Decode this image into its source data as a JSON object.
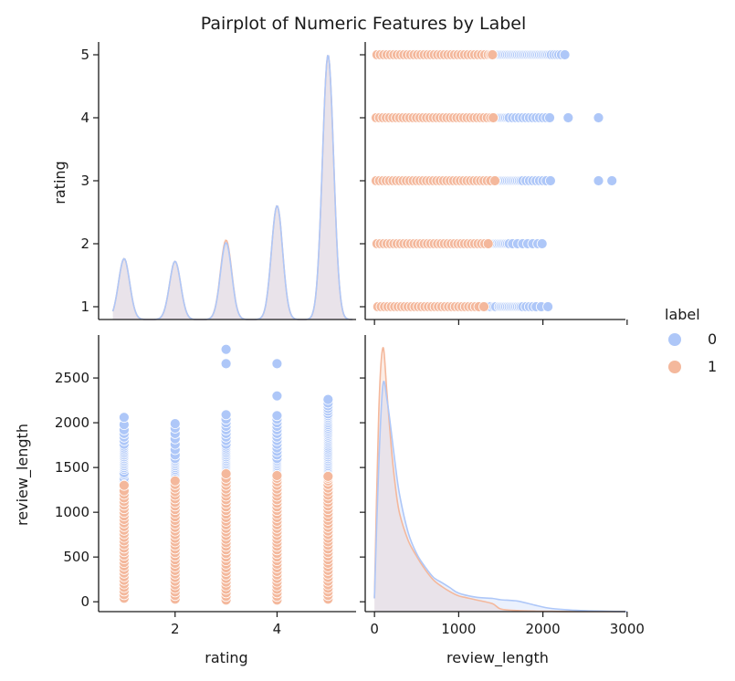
{
  "chart_data": {
    "type": "scatter",
    "title": "Pairplot of Numeric Features by Label",
    "variables": [
      "rating",
      "review_length"
    ],
    "hue": {
      "title": "label",
      "levels": [
        "0",
        "1"
      ],
      "colors": [
        "#aec7f8",
        "#f4b89c"
      ]
    },
    "axes": {
      "rating": {
        "label": "rating",
        "range": [
          0.5,
          5.55
        ],
        "diag_ticks": [
          2,
          4
        ],
        "row_ticks": [
          1,
          2,
          3,
          4,
          5
        ]
      },
      "review_length": {
        "label": "review_length",
        "range": [
          -110,
          2980
        ],
        "col_ticks": [
          0,
          1000,
          2000,
          3000
        ],
        "row_ticks": [
          0,
          500,
          1000,
          1500,
          2000,
          2500
        ]
      }
    },
    "rating_density": {
      "x": [
        1,
        2,
        3,
        4,
        5
      ],
      "peak_heights": [
        0.23,
        0.22,
        0.29,
        0.43,
        1.0
      ],
      "peak_heights_label1": [
        0.23,
        0.22,
        0.3,
        0.43,
        1.0
      ]
    },
    "review_length_density": {
      "x": [
        0,
        50,
        100,
        150,
        200,
        250,
        300,
        400,
        500,
        600,
        700,
        800,
        900,
        1000,
        1200,
        1400,
        1500,
        1700,
        1900,
        2100,
        2400,
        2700,
        3000
      ],
      "label0": [
        0.05,
        0.55,
        0.86,
        0.8,
        0.68,
        0.55,
        0.44,
        0.3,
        0.22,
        0.17,
        0.13,
        0.11,
        0.09,
        0.07,
        0.055,
        0.05,
        0.045,
        0.04,
        0.025,
        0.012,
        0.005,
        0.002,
        0.0
      ],
      "label1": [
        0.05,
        0.75,
        1.0,
        0.82,
        0.62,
        0.47,
        0.37,
        0.27,
        0.21,
        0.16,
        0.12,
        0.095,
        0.075,
        0.06,
        0.045,
        0.03,
        0.01,
        0.004,
        0.002,
        0.001,
        0.0,
        0.0,
        0.0
      ]
    },
    "scatter_points": {
      "label0": {
        "1": [
          60,
          120,
          180,
          240,
          300,
          360,
          420,
          480,
          560,
          620,
          700,
          760,
          820,
          880,
          940,
          1000,
          1060,
          1120,
          1180,
          1220,
          1260,
          1300,
          1340,
          1380,
          1420,
          1440,
          1480,
          1500,
          1520,
          1540,
          1560,
          1580,
          1600,
          1620,
          1640,
          1660,
          1680,
          1700,
          1720,
          1740,
          1760,
          1800,
          1840,
          1880,
          1920,
          1980,
          2060
        ],
        "2": [
          60,
          150,
          240,
          330,
          420,
          510,
          600,
          700,
          780,
          860,
          920,
          960,
          1000,
          1040,
          1080,
          1120,
          1200,
          1280,
          1360,
          1400,
          1420,
          1440,
          1460,
          1480,
          1500,
          1520,
          1540,
          1560,
          1580,
          1600,
          1640,
          1700,
          1760,
          1820,
          1880,
          1940,
          1990
        ],
        "3": [
          60,
          140,
          220,
          300,
          380,
          460,
          540,
          620,
          700,
          780,
          860,
          940,
          1020,
          1100,
          1180,
          1260,
          1340,
          1380,
          1420,
          1440,
          1460,
          1480,
          1500,
          1520,
          1540,
          1560,
          1580,
          1600,
          1620,
          1640,
          1660,
          1680,
          1700,
          1720,
          1740,
          1760,
          1800,
          1840,
          1880,
          1920,
          1960,
          2000,
          2040,
          2090,
          2660,
          2820
        ],
        "4": [
          30,
          110,
          190,
          270,
          350,
          430,
          510,
          590,
          670,
          750,
          830,
          910,
          990,
          1070,
          1150,
          1230,
          1310,
          1390,
          1420,
          1440,
          1460,
          1480,
          1500,
          1520,
          1540,
          1560,
          1580,
          1600,
          1640,
          1680,
          1720,
          1760,
          1800,
          1840,
          1880,
          1920,
          1960,
          2000,
          2040,
          2080,
          2300,
          2660
        ],
        "5": [
          40,
          120,
          200,
          280,
          360,
          440,
          520,
          600,
          680,
          760,
          840,
          920,
          1000,
          1080,
          1160,
          1240,
          1320,
          1400,
          1440,
          1460,
          1480,
          1500,
          1520,
          1540,
          1560,
          1580,
          1600,
          1620,
          1640,
          1660,
          1680,
          1700,
          1720,
          1740,
          1760,
          1780,
          1800,
          1820,
          1840,
          1860,
          1880,
          1900,
          1920,
          1940,
          1960,
          1980,
          2000,
          2020,
          2040,
          2060,
          2080,
          2100,
          2130,
          2160,
          2190,
          2220,
          2260
        ]
      },
      "label1": {
        "1": [
          40,
          80,
          120,
          160,
          200,
          240,
          280,
          320,
          360,
          400,
          440,
          480,
          520,
          560,
          600,
          640,
          680,
          720,
          760,
          800,
          840,
          880,
          920,
          960,
          1000,
          1040,
          1080,
          1120,
          1160,
          1200,
          1240,
          1300
        ],
        "2": [
          30,
          70,
          110,
          150,
          190,
          230,
          270,
          310,
          350,
          390,
          430,
          470,
          510,
          550,
          590,
          630,
          670,
          710,
          750,
          790,
          830,
          870,
          910,
          950,
          990,
          1030,
          1070,
          1110,
          1150,
          1190,
          1230,
          1270,
          1310,
          1350
        ],
        "3": [
          20,
          60,
          100,
          140,
          180,
          220,
          260,
          300,
          340,
          380,
          420,
          460,
          500,
          540,
          580,
          620,
          660,
          700,
          740,
          780,
          820,
          860,
          900,
          940,
          980,
          1020,
          1060,
          1100,
          1140,
          1180,
          1220,
          1260,
          1300,
          1340,
          1380,
          1430
        ],
        "4": [
          20,
          60,
          100,
          140,
          180,
          220,
          260,
          300,
          340,
          380,
          420,
          460,
          500,
          540,
          580,
          620,
          660,
          700,
          740,
          780,
          820,
          860,
          900,
          940,
          980,
          1020,
          1060,
          1100,
          1140,
          1180,
          1220,
          1260,
          1300,
          1340,
          1380,
          1410
        ],
        "5": [
          30,
          70,
          110,
          150,
          190,
          230,
          270,
          310,
          350,
          390,
          430,
          470,
          510,
          550,
          590,
          630,
          670,
          710,
          750,
          790,
          830,
          870,
          910,
          950,
          990,
          1030,
          1070,
          1110,
          1150,
          1190,
          1230,
          1270,
          1310,
          1350,
          1380,
          1400
        ]
      }
    },
    "legend_placement": "center-right",
    "grid": false
  }
}
